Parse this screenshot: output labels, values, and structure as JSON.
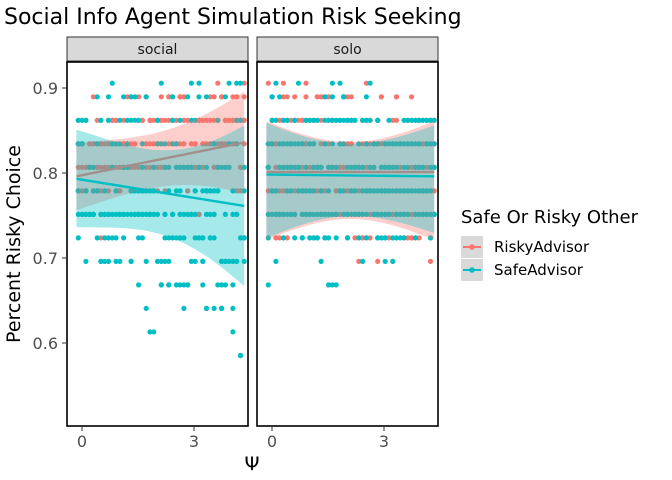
{
  "chart_data": {
    "type": "scatter",
    "title": "Social Info Agent Simulation Risk Seeking",
    "xlabel": "Ψ",
    "ylabel": "Percent Risky Choice",
    "x_ticks": [
      "0",
      "3"
    ],
    "y_ticks": [
      "0.6",
      "0.7",
      "0.8",
      "0.9"
    ],
    "xlim": [
      -0.3,
      4.5
    ],
    "ylim": [
      0.5,
      0.93
    ],
    "legend": {
      "title": "Safe Or Risky Other",
      "placement": "right",
      "entries": [
        "RiskyAdvisor",
        "SafeAdvisor"
      ]
    },
    "colors": {
      "RiskyAdvisor": "#F8766D",
      "SafeAdvisor": "#00BFC4"
    },
    "panels": [
      {
        "strip": "social",
        "series": [
          {
            "name": "RiskyAdvisor",
            "fit": {
              "y_start": 0.795,
              "y_end": 0.835,
              "band_start": [
                0.755,
                0.835
              ],
              "band_end": [
                0.775,
                0.895
              ]
            }
          },
          {
            "name": "SafeAdvisor",
            "fit": {
              "y_start": 0.792,
              "y_end": 0.76,
              "band_start": [
                0.735,
                0.85
              ],
              "band_end": [
                0.665,
                0.855
              ]
            }
          }
        ]
      },
      {
        "strip": "solo",
        "series": [
          {
            "name": "RiskyAdvisor",
            "fit": {
              "y_start": 0.8,
              "y_end": 0.8,
              "band_start": [
                0.72,
                0.86
              ],
              "band_end": [
                0.72,
                0.86
              ]
            }
          },
          {
            "name": "SafeAdvisor",
            "fit": {
              "y_start": 0.797,
              "y_end": 0.795,
              "band_start": [
                0.722,
                0.858
              ],
              "band_end": [
                0.728,
                0.855
              ]
            }
          }
        ]
      }
    ]
  }
}
